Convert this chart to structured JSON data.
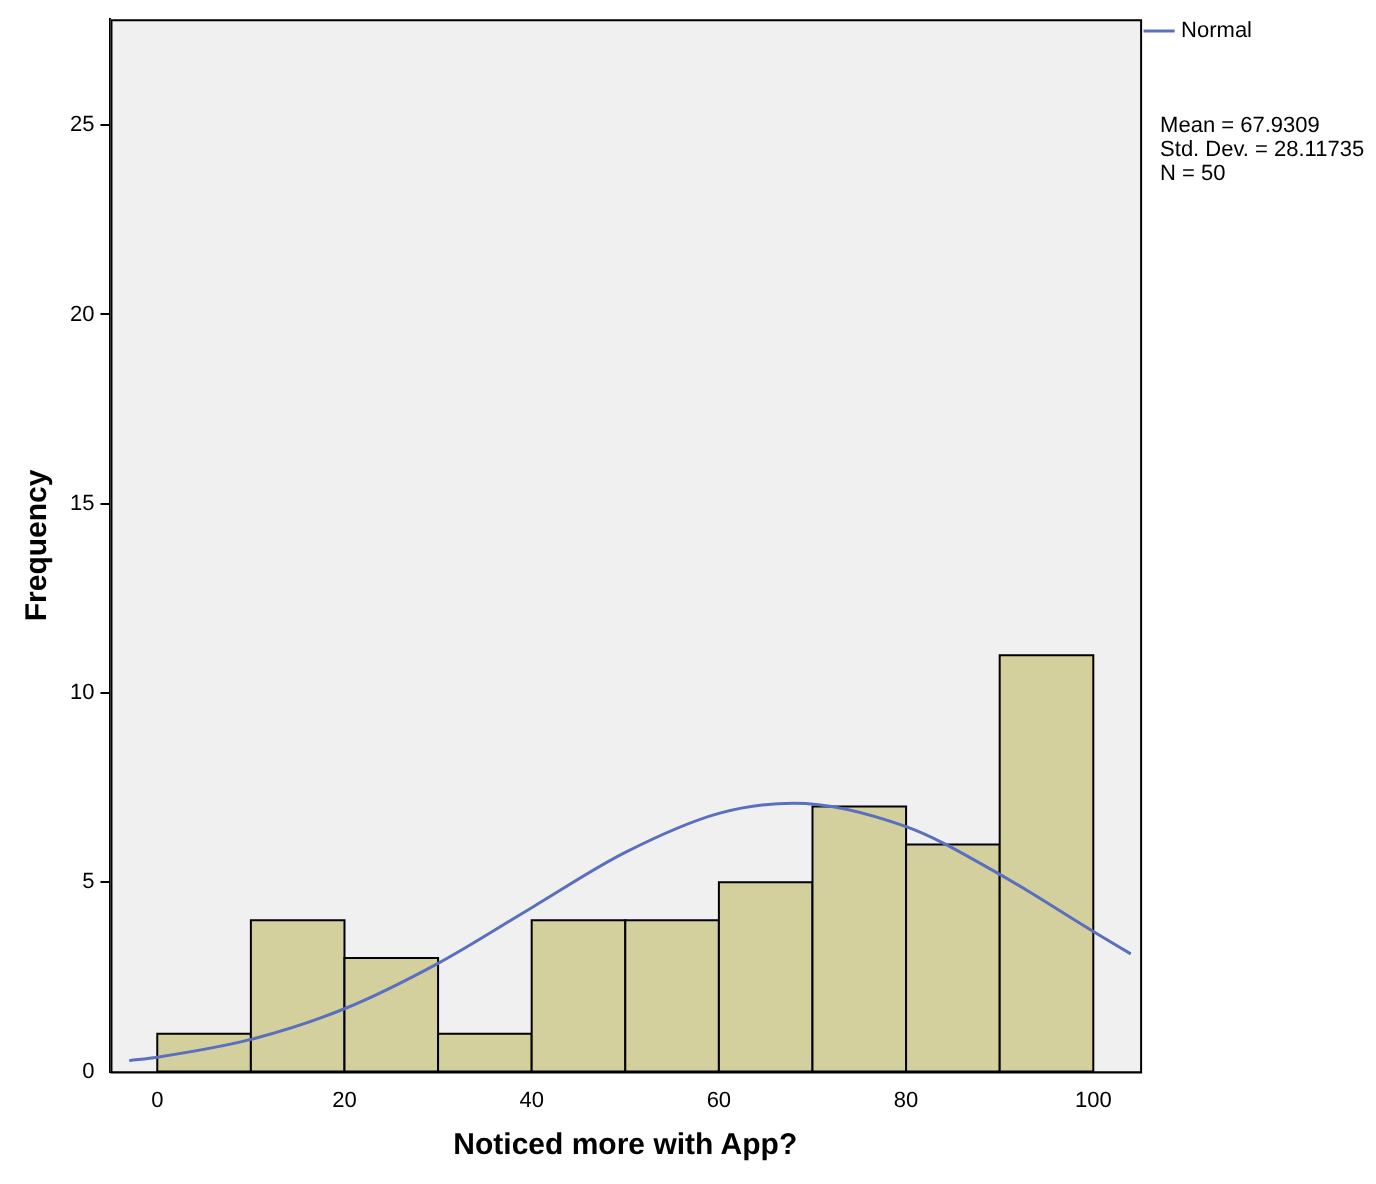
{
  "chart_data": {
    "type": "histogram",
    "xlabel": "Noticed more with App?",
    "ylabel": "Frequency",
    "bins": [
      0,
      10,
      20,
      30,
      40,
      50,
      60,
      70,
      80,
      90,
      100
    ],
    "values": [
      1,
      4,
      3,
      1,
      4,
      4,
      5,
      7,
      6,
      11
    ],
    "color": "#d4d09e",
    "series": [
      {
        "name": "Normal",
        "type": "line",
        "color": "#5b6fbf",
        "x": [
          -3,
          0,
          10,
          20,
          30,
          40,
          50,
          60,
          68,
          80,
          90,
          100,
          104
        ],
        "values": [
          0.29,
          0.38,
          0.85,
          1.66,
          2.86,
          4.33,
          5.79,
          6.82,
          7.09,
          6.47,
          5.21,
          3.7,
          3.11
        ]
      }
    ],
    "xlim": [
      -5,
      105
    ],
    "xticks": [
      0,
      20,
      40,
      60,
      80,
      100
    ],
    "ylim": [
      0,
      27.8
    ],
    "yticks": [
      0,
      5,
      10,
      15,
      20,
      25
    ],
    "grid": false,
    "legend": "top right",
    "marker": "none",
    "line_style": "solid",
    "annotations": [
      "Mean = 67.9309",
      "Std. Dev. = 28.11735",
      "N = 50"
    ]
  }
}
